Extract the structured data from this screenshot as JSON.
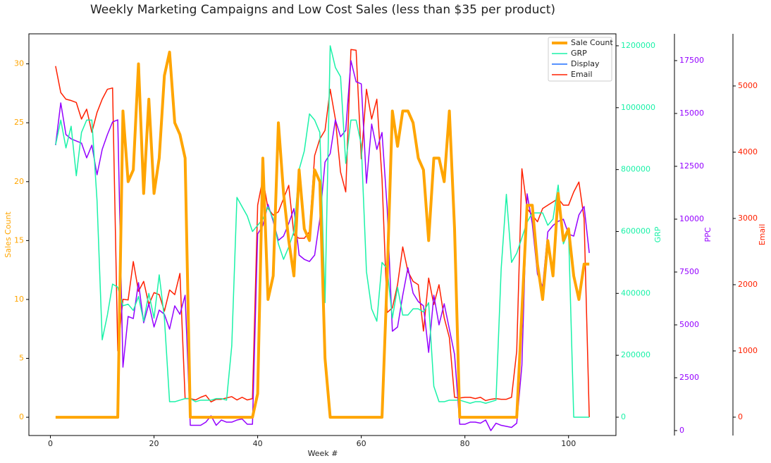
{
  "chart_data": {
    "type": "line",
    "title": "Weekly Marketing Campaigns and Low Cost Sales (less than $35 per product)",
    "xlabel": "Week #",
    "ylabel": "Sales Count",
    "y2label": "GRP",
    "y3label": "PPC",
    "y4label": "Email",
    "legend": "upper right",
    "x": [
      1,
      2,
      3,
      4,
      5,
      6,
      7,
      8,
      9,
      10,
      11,
      12,
      13,
      14,
      15,
      16,
      17,
      18,
      19,
      20,
      21,
      22,
      23,
      24,
      25,
      26,
      27,
      28,
      29,
      30,
      31,
      32,
      33,
      34,
      35,
      36,
      37,
      38,
      39,
      40,
      41,
      42,
      43,
      44,
      45,
      46,
      47,
      48,
      49,
      50,
      51,
      52,
      53,
      54,
      55,
      56,
      57,
      58,
      59,
      60,
      61,
      62,
      63,
      64,
      65,
      66,
      67,
      68,
      69,
      70,
      71,
      72,
      73,
      74,
      75,
      76,
      77,
      78,
      79,
      80,
      81,
      82,
      83,
      84,
      85,
      86,
      87,
      88,
      89,
      90,
      91,
      92,
      93,
      94,
      95,
      96,
      97,
      98,
      99,
      100,
      101,
      102,
      103,
      104
    ],
    "xlim": [
      -4.15,
      109.15
    ],
    "xticks": [
      0,
      20,
      40,
      60,
      80,
      100
    ],
    "ylim": [
      -1.55,
      32.55
    ],
    "yticks": [
      0,
      5,
      10,
      15,
      20,
      25,
      30
    ],
    "y2lim": [
      -59200,
      1238600
    ],
    "y2ticks": [
      0,
      200000,
      400000,
      600000,
      800000,
      1000000,
      1200000
    ],
    "y3lim": [
      -233,
      18767
    ],
    "y3ticks": [
      0,
      2500,
      5000,
      7500,
      10000,
      12500,
      15000,
      17500
    ],
    "y4lim": [
      -277,
      5787
    ],
    "y4ticks": [
      0,
      1000,
      2000,
      3000,
      4000,
      5000
    ],
    "series": [
      {
        "name": "Sale Count",
        "color": "#ffa500",
        "width": 4,
        "axis": "y",
        "values": [
          0,
          0,
          0,
          0,
          0,
          0,
          0,
          0,
          0,
          0,
          0,
          0,
          0,
          26,
          20,
          21,
          30,
          19,
          27,
          19,
          22,
          29,
          31,
          25,
          24,
          22,
          0,
          0,
          0,
          0,
          0,
          0,
          0,
          0,
          0,
          0,
          0,
          0,
          0,
          2,
          22,
          10,
          12,
          25,
          19,
          15,
          12,
          21,
          16,
          15,
          21,
          20,
          5,
          0,
          0,
          0,
          0,
          0,
          0,
          0,
          0,
          0,
          0,
          0,
          12,
          26,
          23,
          26,
          26,
          25,
          22,
          21,
          15,
          22,
          22,
          20,
          26,
          16,
          0,
          0,
          0,
          0,
          0,
          0,
          0,
          0,
          0,
          0,
          0,
          0,
          9,
          18,
          18,
          13,
          10,
          15,
          12,
          19,
          15,
          16,
          12,
          10,
          13,
          13
        ]
      },
      {
        "name": "GRP",
        "color": "#1af2a8",
        "width": 1.5,
        "axis": "y2",
        "values": [
          880000,
          960000,
          870000,
          940000,
          780000,
          920000,
          960000,
          960000,
          700000,
          250000,
          330000,
          430000,
          420000,
          360000,
          365000,
          345000,
          390000,
          310000,
          400000,
          320000,
          460000,
          320000,
          50000,
          50000,
          55000,
          60000,
          60000,
          50000,
          55000,
          55000,
          55000,
          60000,
          60000,
          55000,
          230000,
          710000,
          680000,
          650000,
          600000,
          620000,
          640000,
          680000,
          640000,
          560000,
          510000,
          550000,
          600000,
          800000,
          860000,
          980000,
          960000,
          920000,
          370000,
          1200000,
          1130000,
          1100000,
          820000,
          960000,
          960000,
          880000,
          470000,
          350000,
          310000,
          500000,
          480000,
          320000,
          420000,
          330000,
          330000,
          350000,
          350000,
          340000,
          370000,
          100000,
          50000,
          50000,
          55000,
          55000,
          55000,
          50000,
          45000,
          50000,
          50000,
          45000,
          50000,
          55000,
          480000,
          720000,
          500000,
          530000,
          580000,
          630000,
          660000,
          660000,
          660000,
          620000,
          640000,
          750000,
          560000,
          600000,
          0,
          0,
          0,
          0
        ]
      },
      {
        "name": "Display",
        "color": "#9400ff",
        "legend_color": "#1f6fff",
        "width": 1.5,
        "axis": "y3",
        "values": [
          13500,
          15500,
          14000,
          13800,
          13700,
          13600,
          12900,
          13500,
          12100,
          13300,
          14000,
          14600,
          14700,
          3000,
          5400,
          5300,
          7000,
          5100,
          6000,
          4900,
          5700,
          5500,
          4800,
          5900,
          5500,
          6400,
          250,
          250,
          250,
          400,
          700,
          250,
          500,
          400,
          400,
          500,
          550,
          300,
          300,
          9300,
          9700,
          10700,
          9900,
          9000,
          9200,
          9800,
          10500,
          8300,
          8100,
          8000,
          8300,
          10000,
          12700,
          13100,
          14700,
          13900,
          14200,
          17500,
          16500,
          16400,
          11700,
          14500,
          13300,
          14100,
          10500,
          4700,
          4900,
          6400,
          7700,
          6500,
          6100,
          5900,
          3700,
          6400,
          5000,
          6000,
          4800,
          3600,
          300,
          300,
          400,
          400,
          350,
          500,
          0,
          350,
          250,
          200,
          150,
          350,
          3100,
          11200,
          9800,
          7400,
          6800,
          9400,
          9700,
          9900,
          10000,
          9300,
          9200,
          10200,
          10600,
          8400
        ]
      },
      {
        "name": "Email",
        "color": "#ff2000",
        "width": 1.5,
        "axis": "y4",
        "values": [
          5300,
          4900,
          4800,
          4780,
          4750,
          4500,
          4650,
          4300,
          4600,
          4800,
          4950,
          4970,
          1000,
          1780,
          1770,
          2350,
          1900,
          2050,
          1700,
          1880,
          1850,
          1600,
          1920,
          1850,
          2170,
          280,
          280,
          260,
          300,
          330,
          230,
          270,
          270,
          290,
          310,
          260,
          300,
          260,
          280,
          3200,
          3600,
          3150,
          3050,
          3100,
          3300,
          3500,
          2750,
          2700,
          2700,
          2800,
          3950,
          4200,
          4330,
          4950,
          4500,
          3700,
          3400,
          5550,
          5540,
          3900,
          4950,
          4500,
          4800,
          3600,
          1580,
          1650,
          2000,
          2570,
          2200,
          2050,
          2000,
          1300,
          2100,
          1700,
          2000,
          1500,
          1200,
          300,
          290,
          300,
          300,
          280,
          300,
          250,
          270,
          280,
          270,
          270,
          300,
          1000,
          3750,
          3150,
          3050,
          2950,
          3150,
          3200,
          3250,
          3300,
          3200,
          3200,
          3400,
          3550,
          3000,
          0
        ]
      }
    ]
  }
}
